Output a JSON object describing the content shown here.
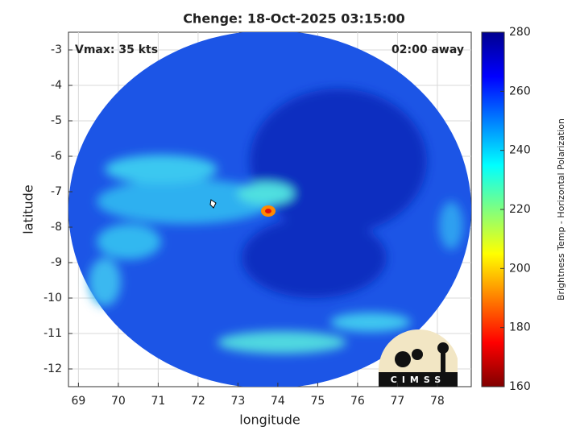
{
  "chart_data": {
    "type": "map",
    "title": "Chenge: 18-Oct-2025 03:15:00",
    "annotations": [
      "Vmax: 35 kts",
      "02:00 away"
    ],
    "xlabel": "longitude",
    "ylabel": "latitude",
    "xlim": [
      68.75,
      78.85
    ],
    "ylim": [
      -12.5,
      -2.5
    ],
    "xticks": [
      69,
      70,
      71,
      72,
      73,
      74,
      75,
      76,
      77,
      78
    ],
    "yticks": [
      -3,
      -4,
      -5,
      -6,
      -7,
      -8,
      -9,
      -10,
      -11,
      -12
    ],
    "grid": true,
    "colorbar": {
      "label": "Brightness Temp - Horizontal Polarization",
      "lim": [
        160,
        280
      ],
      "ticks": [
        160,
        180,
        200,
        220,
        240,
        260,
        280
      ]
    },
    "logo": "CIMSS"
  }
}
